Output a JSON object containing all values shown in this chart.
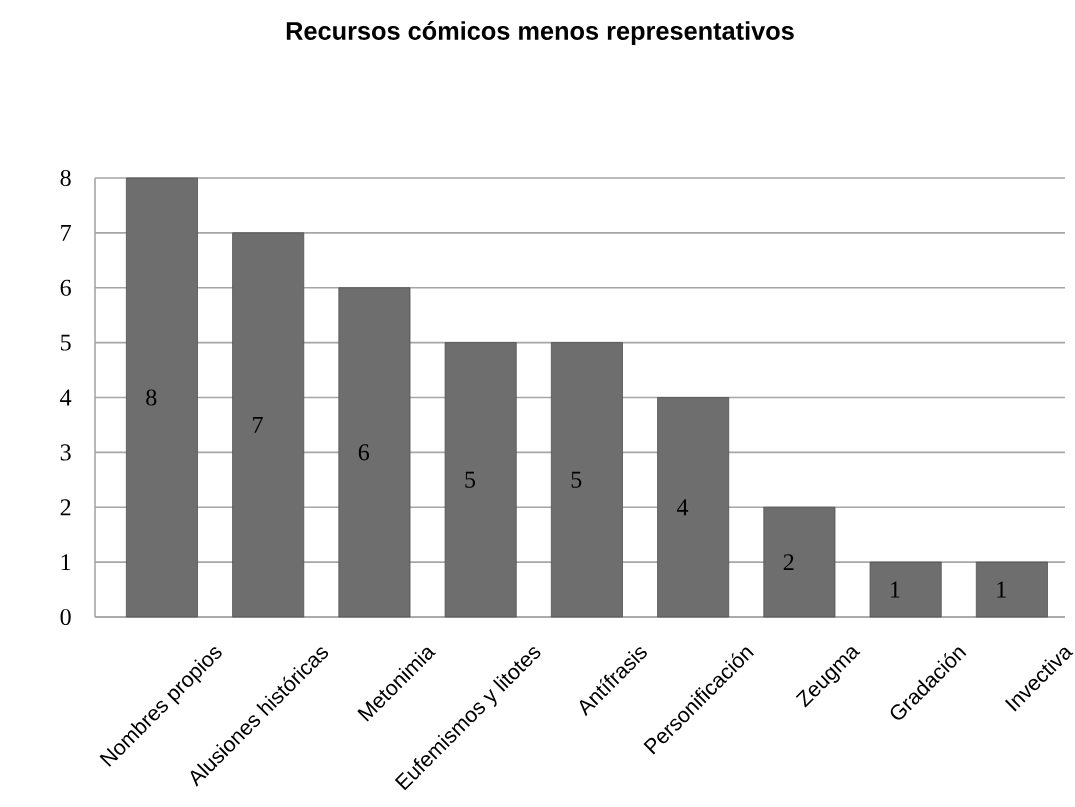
{
  "chart_data": {
    "type": "bar",
    "title": "Recursos cómicos menos representativos",
    "categories": [
      "Nombres propios",
      "Alusiones históricas",
      "Metonimia",
      "Eufemismos y litotes",
      "Antífrasis",
      "Personificación",
      "Zeugma",
      "Gradación",
      "Invectiva"
    ],
    "values": [
      8,
      7,
      6,
      5,
      5,
      4,
      2,
      1,
      1
    ],
    "color": "#6e6e6e",
    "ylim": [
      0,
      8
    ],
    "yticks": [
      0,
      1,
      2,
      3,
      4,
      5,
      6,
      7,
      8
    ],
    "grid": "y",
    "data_labels": true
  }
}
